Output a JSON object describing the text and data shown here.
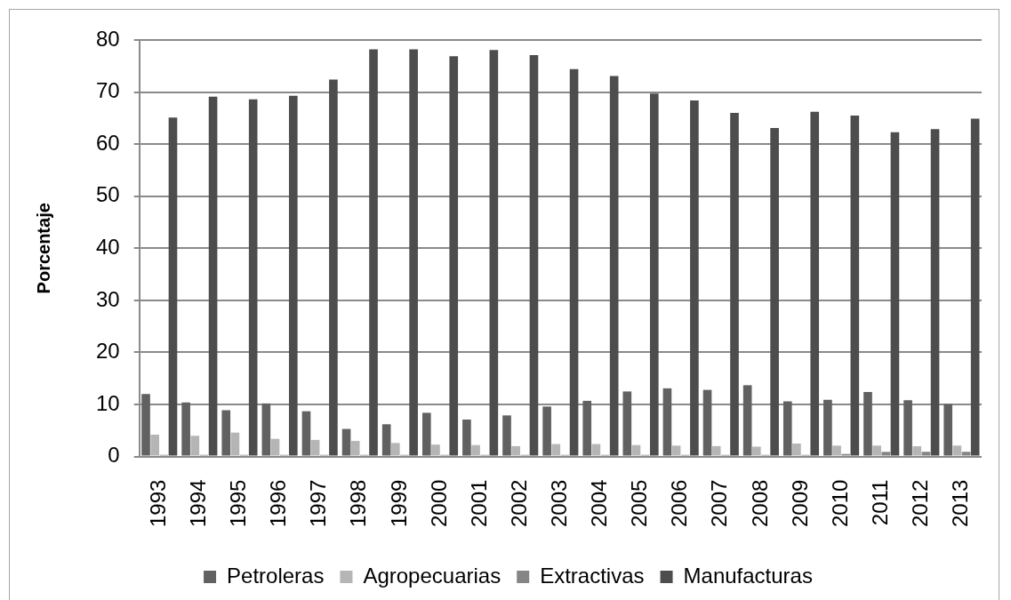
{
  "chart_data": {
    "type": "bar",
    "ylabel": "Porcentaje",
    "categories": [
      "1993",
      "1994",
      "1995",
      "1996",
      "1997",
      "1998",
      "1999",
      "2000",
      "2001",
      "2002",
      "2003",
      "2004",
      "2005",
      "2006",
      "2007",
      "2008",
      "2009",
      "2010",
      "2011",
      "2012",
      "2013"
    ],
    "series": [
      {
        "name": "Petroleras",
        "color": "#616161",
        "values": [
          12.0,
          10.4,
          8.9,
          10.2,
          8.7,
          5.3,
          6.2,
          8.4,
          7.1,
          7.9,
          9.6,
          10.7,
          12.5,
          13.1,
          12.8,
          13.7,
          10.6,
          10.9,
          12.4,
          10.8,
          10.1
        ]
      },
      {
        "name": "Agropecuarias",
        "color": "#b5b5b5",
        "values": [
          4.2,
          4.0,
          4.6,
          3.4,
          3.2,
          3.0,
          2.6,
          2.3,
          2.2,
          2.0,
          2.4,
          2.4,
          2.2,
          2.1,
          2.0,
          1.9,
          2.5,
          2.1,
          2.1,
          2.0,
          2.1
        ]
      },
      {
        "name": "Extractivas",
        "color": "#858585",
        "values": [
          0.3,
          0.3,
          0.3,
          0.3,
          0.3,
          0.3,
          0.3,
          0.3,
          0.3,
          0.3,
          0.3,
          0.3,
          0.3,
          0.3,
          0.3,
          0.3,
          0.3,
          0.5,
          0.9,
          0.9,
          0.9
        ]
      },
      {
        "name": "Manufacturas",
        "color": "#4d4d4d",
        "values": [
          65.1,
          69.1,
          68.6,
          69.3,
          72.4,
          78.2,
          78.2,
          76.9,
          78.1,
          77.1,
          74.4,
          73.1,
          69.7,
          68.4,
          66.0,
          63.1,
          66.2,
          65.5,
          62.3,
          62.9,
          64.9
        ]
      }
    ],
    "ylim": [
      0,
      80
    ],
    "yticks": [
      0,
      10,
      20,
      30,
      40,
      50,
      60,
      70,
      80
    ],
    "grid": "y",
    "legend": "bottom"
  }
}
